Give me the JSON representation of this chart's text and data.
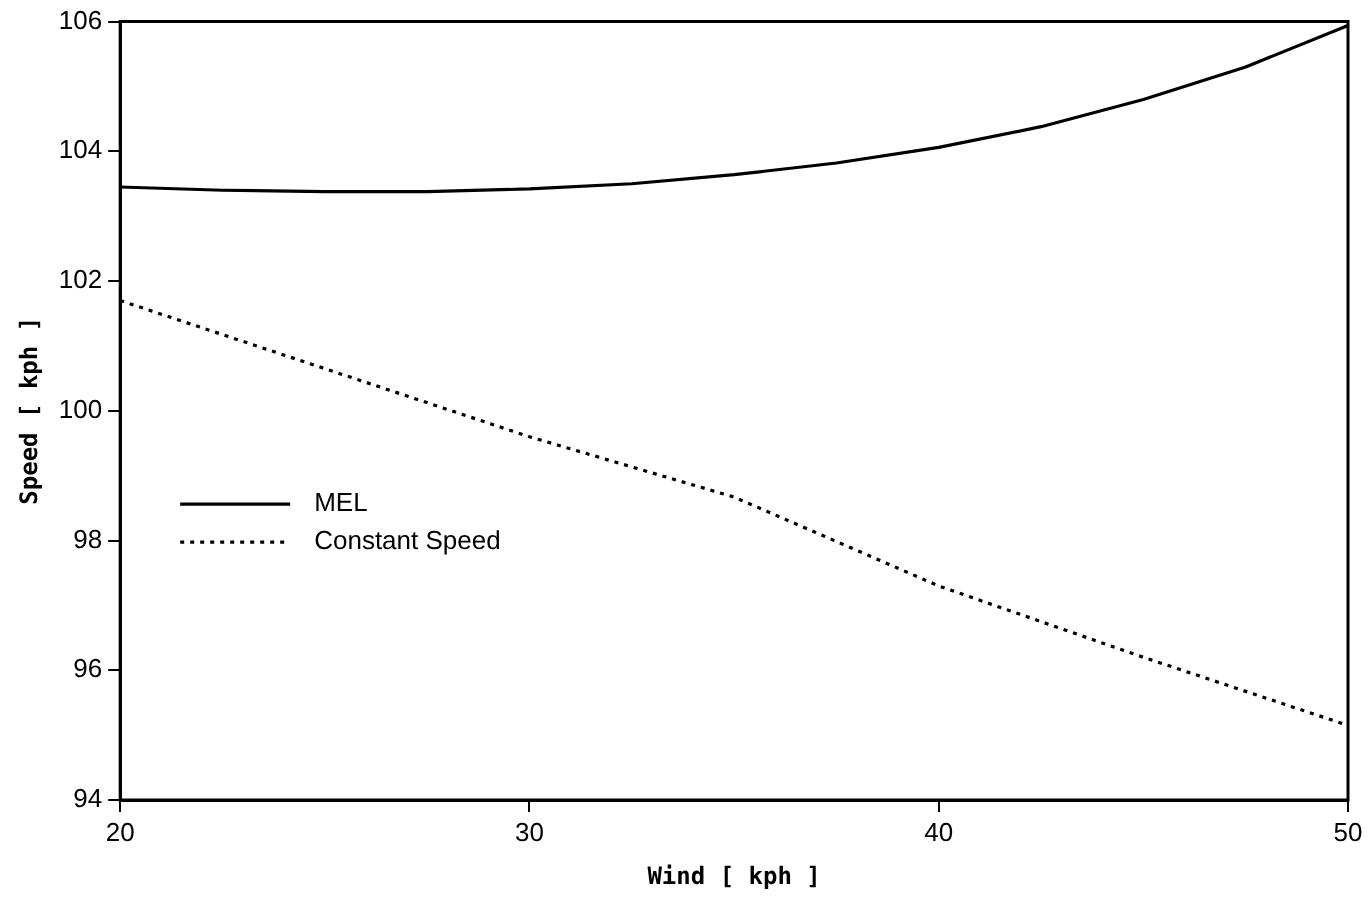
{
  "chart_data": {
    "type": "line",
    "xlabel": "Wind [ kph ]",
    "ylabel": "Speed [ kph ]",
    "xlim": [
      20,
      50
    ],
    "xticks": [
      20,
      30,
      40,
      50
    ],
    "ylim": [
      94,
      106
    ],
    "yticks": [
      94,
      96,
      98,
      100,
      102,
      104,
      106
    ],
    "grid": false,
    "legend": "left",
    "marker": "none",
    "series": [
      {
        "name": "MEL",
        "color": "#000000",
        "line_style": "solid",
        "x": [
          20,
          22.5,
          25,
          27.5,
          30,
          32.5,
          35,
          37.5,
          40,
          42.5,
          45,
          47.5,
          50
        ],
        "values": [
          103.45,
          103.4,
          103.38,
          103.38,
          103.42,
          103.5,
          103.64,
          103.82,
          104.06,
          104.38,
          104.8,
          105.3,
          105.94
        ]
      },
      {
        "name": "Constant Speed",
        "color": "#000000",
        "line_style": "dotted",
        "x": [
          20,
          25,
          30,
          35,
          40,
          45,
          50
        ],
        "values": [
          101.7,
          100.65,
          99.6,
          98.67,
          97.3,
          96.2,
          95.15
        ]
      }
    ]
  }
}
